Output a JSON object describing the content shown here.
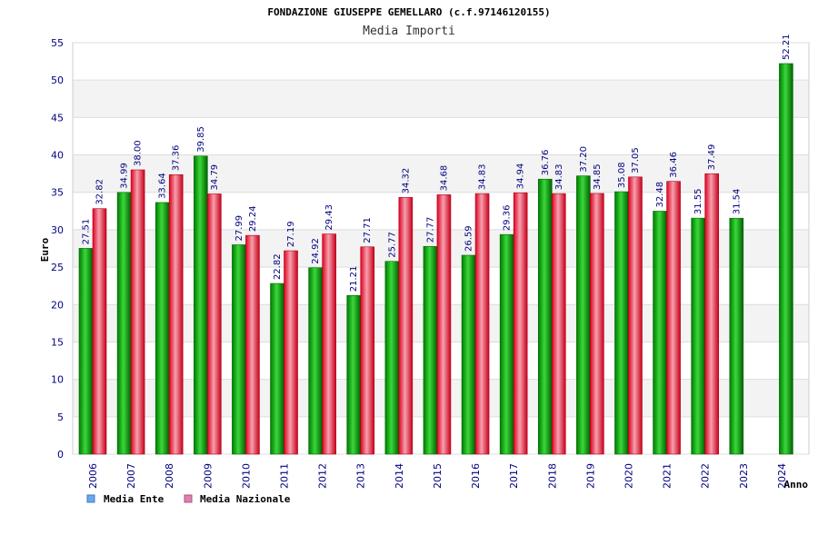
{
  "chart_data": {
    "type": "bar",
    "title": "FONDAZIONE GIUSEPPE GEMELLARO (c.f.97146120155)",
    "subtitle": "Media Importi",
    "xlabel": "Anno",
    "ylabel": "Euro",
    "ylim": [
      0,
      55
    ],
    "yticks": [
      "0",
      "5",
      "10",
      "15",
      "20",
      "25",
      "30",
      "35",
      "40",
      "45",
      "50",
      "55"
    ],
    "grid": true,
    "legend_position": "bottom-left",
    "categories": [
      "2006",
      "2007",
      "2008",
      "2009",
      "2010",
      "2011",
      "2012",
      "2013",
      "2014",
      "2015",
      "2016",
      "2017",
      "2018",
      "2019",
      "2020",
      "2021",
      "2022",
      "2023",
      "2024"
    ],
    "series": [
      {
        "name": "Media Ente",
        "values": [
          27.51,
          34.99,
          33.64,
          39.85,
          27.99,
          22.82,
          24.92,
          21.21,
          25.77,
          27.77,
          26.59,
          29.36,
          36.76,
          37.2,
          35.08,
          32.48,
          31.55,
          31.54,
          52.21
        ],
        "labels": [
          "27.51",
          "34.99",
          "33.64",
          "39.85",
          "27.99",
          "22.82",
          "24.92",
          "21.21",
          "25.77",
          "27.77",
          "26.59",
          "29.36",
          "36.76",
          "37.20",
          "35.08",
          "32.48",
          "31.55",
          "31.54",
          "52.21"
        ],
        "color": "#00b400",
        "legend_color": "#66aaee"
      },
      {
        "name": "Media Nazionale",
        "values": [
          32.82,
          38.0,
          37.36,
          34.79,
          29.24,
          27.19,
          29.43,
          27.71,
          34.32,
          34.68,
          34.83,
          34.94,
          34.83,
          34.85,
          37.05,
          36.46,
          37.49,
          null,
          null
        ],
        "labels": [
          "32.82",
          "38.00",
          "37.36",
          "34.79",
          "29.24",
          "27.19",
          "29.43",
          "27.71",
          "34.32",
          "34.68",
          "34.83",
          "34.94",
          "34.83",
          "34.85",
          "37.05",
          "36.46",
          "37.49",
          null,
          null
        ],
        "color": "#e8203c",
        "legend_color": "#e080b0"
      }
    ]
  }
}
